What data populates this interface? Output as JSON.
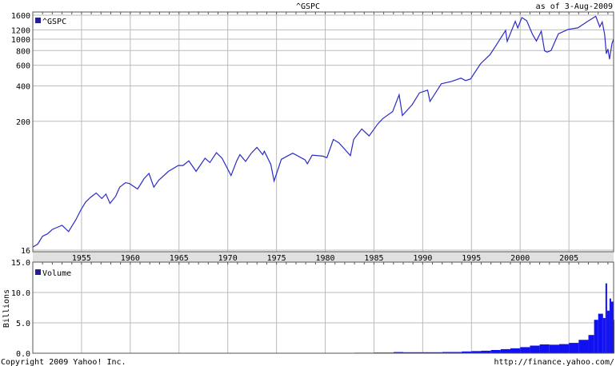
{
  "chart_data": [
    {
      "type": "line",
      "title": "^GSPC",
      "as_of": "as of  3-Aug-2009",
      "yscale": "log",
      "ylim": [
        16,
        1600
      ],
      "y_ticks": [
        16,
        200,
        400,
        600,
        800,
        1000,
        1200,
        1600
      ],
      "x_ticks": [
        "1955",
        "1960",
        "1965",
        "1970",
        "1975",
        "1980",
        "1985",
        "1990",
        "1995",
        "2000",
        "2005"
      ],
      "xlim": [
        "1950-01",
        "2009-08"
      ],
      "grid": true,
      "legend": {
        "label": "^GSPC",
        "placement": "top-left"
      },
      "series_color": "#2b2bc8",
      "series": [
        {
          "name": "^GSPC",
          "points": [
            [
              "1950-01",
              17
            ],
            [
              "1950-07",
              18
            ],
            [
              "1951-01",
              21
            ],
            [
              "1951-07",
              22
            ],
            [
              "1952-01",
              24
            ],
            [
              "1952-07",
              25
            ],
            [
              "1953-01",
              26
            ],
            [
              "1953-09",
              23
            ],
            [
              "1954-06",
              29
            ],
            [
              "1954-12",
              35
            ],
            [
              "1955-06",
              41
            ],
            [
              "1955-12",
              45
            ],
            [
              "1956-07",
              49
            ],
            [
              "1957-02",
              44
            ],
            [
              "1957-07",
              48
            ],
            [
              "1957-12",
              40
            ],
            [
              "1958-07",
              46
            ],
            [
              "1958-12",
              55
            ],
            [
              "1959-07",
              60
            ],
            [
              "1959-12",
              59
            ],
            [
              "1960-10",
              53
            ],
            [
              "1961-06",
              65
            ],
            [
              "1961-12",
              72
            ],
            [
              "1962-06",
              55
            ],
            [
              "1962-12",
              63
            ],
            [
              "1963-12",
              75
            ],
            [
              "1964-12",
              84
            ],
            [
              "1965-06",
              84
            ],
            [
              "1966-01",
              92
            ],
            [
              "1966-10",
              75
            ],
            [
              "1967-09",
              97
            ],
            [
              "1968-03",
              89
            ],
            [
              "1968-11",
              108
            ],
            [
              "1969-06",
              97
            ],
            [
              "1970-05",
              69
            ],
            [
              "1970-12",
              92
            ],
            [
              "1971-04",
              104
            ],
            [
              "1971-11",
              91
            ],
            [
              "1972-06",
              107
            ],
            [
              "1973-01",
              120
            ],
            [
              "1973-08",
              104
            ],
            [
              "1973-10",
              111
            ],
            [
              "1974-06",
              86
            ],
            [
              "1974-10",
              62
            ],
            [
              "1975-07",
              95
            ],
            [
              "1976-09",
              107
            ],
            [
              "1977-12",
              94
            ],
            [
              "1978-03",
              87
            ],
            [
              "1978-09",
              103
            ],
            [
              "1979-10",
              101
            ],
            [
              "1980-03",
              98
            ],
            [
              "1980-11",
              140
            ],
            [
              "1981-06",
              131
            ],
            [
              "1982-08",
              102
            ],
            [
              "1982-12",
              140
            ],
            [
              "1983-10",
              172
            ],
            [
              "1984-07",
              150
            ],
            [
              "1985-06",
              191
            ],
            [
              "1985-12",
              211
            ],
            [
              "1986-12",
              242
            ],
            [
              "1987-08",
              336
            ],
            [
              "1987-12",
              224
            ],
            [
              "1988-12",
              277
            ],
            [
              "1989-09",
              349
            ],
            [
              "1990-07",
              368
            ],
            [
              "1990-10",
              295
            ],
            [
              "1991-12",
              417
            ],
            [
              "1992-12",
              435
            ],
            [
              "1993-12",
              466
            ],
            [
              "1994-06",
              444
            ],
            [
              "1994-12",
              459
            ],
            [
              "1995-12",
              615
            ],
            [
              "1996-12",
              740
            ],
            [
              "1997-10",
              945
            ],
            [
              "1998-07",
              1186
            ],
            [
              "1998-09",
              957
            ],
            [
              "1999-07",
              1418
            ],
            [
              "1999-10",
              1247
            ],
            [
              "2000-03",
              1527
            ],
            [
              "2000-09",
              1436
            ],
            [
              "2001-04",
              1103
            ],
            [
              "2001-09",
              965
            ],
            [
              "2002-03",
              1170
            ],
            [
              "2002-07",
              797
            ],
            [
              "2002-10",
              776
            ],
            [
              "2003-03",
              800
            ],
            [
              "2003-12",
              1111
            ],
            [
              "2004-12",
              1211
            ],
            [
              "2005-12",
              1248
            ],
            [
              "2006-12",
              1418
            ],
            [
              "2007-10",
              1565
            ],
            [
              "2008-03",
              1273
            ],
            [
              "2008-06",
              1400
            ],
            [
              "2008-09",
              1100
            ],
            [
              "2008-11",
              752
            ],
            [
              "2009-01",
              825
            ],
            [
              "2009-03",
              676
            ],
            [
              "2009-06",
              919
            ],
            [
              "2009-08",
              1002
            ]
          ]
        }
      ]
    },
    {
      "type": "bar",
      "legend": {
        "label": "Volume",
        "placement": "top-left"
      },
      "ylabel": "Billions",
      "ylim": [
        0,
        15
      ],
      "y_ticks": [
        "0.0",
        "5.0",
        "10.0",
        "15.0"
      ],
      "xlim": [
        "1950-01",
        "2009-08"
      ],
      "grid": true,
      "series_color": "#1010f0",
      "series": [
        {
          "name": "Volume",
          "points": [
            [
              "1950",
              0.002
            ],
            [
              "1955",
              0.003
            ],
            [
              "1960",
              0.003
            ],
            [
              "1965",
              0.006
            ],
            [
              "1970",
              0.012
            ],
            [
              "1975",
              0.02
            ],
            [
              "1980",
              0.045
            ],
            [
              "1983",
              0.08
            ],
            [
              "1985",
              0.11
            ],
            [
              "1987",
              0.19
            ],
            [
              "1988",
              0.16
            ],
            [
              "1990",
              0.16
            ],
            [
              "1992",
              0.2
            ],
            [
              "1994",
              0.29
            ],
            [
              "1995",
              0.35
            ],
            [
              "1996",
              0.41
            ],
            [
              "1997",
              0.53
            ],
            [
              "1998",
              0.67
            ],
            [
              "1999",
              0.81
            ],
            [
              "2000",
              1.0
            ],
            [
              "2001",
              1.25
            ],
            [
              "2002",
              1.45
            ],
            [
              "2003",
              1.4
            ],
            [
              "2004",
              1.5
            ],
            [
              "2005",
              1.7
            ],
            [
              "2006",
              2.2
            ],
            [
              "2007",
              3.0
            ],
            [
              "2007-08",
              5.5
            ],
            [
              "2008-01",
              6.5
            ],
            [
              "2008-07",
              5.8
            ],
            [
              "2008-10",
              11.5
            ],
            [
              "2008-12",
              7.0
            ],
            [
              "2009-03",
              9.0
            ],
            [
              "2009-05",
              8.5
            ],
            [
              "2009-08",
              5.5
            ]
          ]
        }
      ]
    }
  ],
  "footer": {
    "copyright": "Copyright 2009 Yahoo! Inc.",
    "url": "http://finance.yahoo.com/"
  }
}
